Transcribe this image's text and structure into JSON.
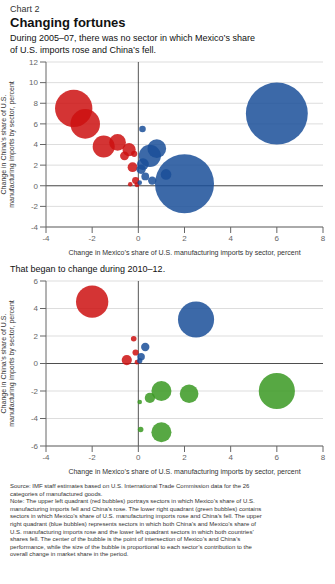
{
  "chart_data": [
    {
      "type": "bubble",
      "title": "Changing fortunes",
      "subtitle": "During 2005–07, there was no sector in which Mexico’s share\nof U.S. imports rose and China’s fell.",
      "annotations": [
        "Chart 2"
      ],
      "xlabel": "Change in Mexico’s share of U.S. manufacturing imports by sector, percent",
      "ylabel": "Change in China’s share of U.S.\nmanufacturing imports by sector, percent",
      "xlim": [
        -4,
        8
      ],
      "ylim": [
        -4,
        12
      ],
      "xticks": [
        -4,
        -2,
        0,
        2,
        4,
        6,
        8
      ],
      "yticks": [
        -4,
        -2,
        0,
        2,
        4,
        6,
        8,
        10,
        12
      ],
      "grid": true,
      "series": [
        {
          "color": "#cc1111",
          "points": [
            {
              "x": -2.8,
              "y": 7.5,
              "size": 800
            },
            {
              "x": -2.3,
              "y": 6.0,
              "size": 500
            },
            {
              "x": -1.5,
              "y": 3.8,
              "size": 280
            },
            {
              "x": -0.9,
              "y": 4.2,
              "size": 160
            },
            {
              "x": -0.4,
              "y": 3.5,
              "size": 100
            },
            {
              "x": -0.25,
              "y": 1.8,
              "size": 55
            },
            {
              "x": -0.12,
              "y": 0.5,
              "size": 28
            },
            {
              "x": -0.06,
              "y": 0.1,
              "size": 14
            },
            {
              "x": -0.35,
              "y": 0.15,
              "size": 12
            },
            {
              "x": -0.6,
              "y": 2.9,
              "size": 45
            },
            {
              "x": -0.18,
              "y": 3.1,
              "size": 22
            }
          ]
        },
        {
          "color": "#1a4f99",
          "points": [
            {
              "x": 2.0,
              "y": 0.2,
              "size": 2000
            },
            {
              "x": 6.0,
              "y": 7.0,
              "size": 2200
            },
            {
              "x": 0.5,
              "y": 2.9,
              "size": 280
            },
            {
              "x": 0.8,
              "y": 3.6,
              "size": 200
            },
            {
              "x": 0.2,
              "y": 2.1,
              "size": 80
            },
            {
              "x": 0.12,
              "y": 1.6,
              "size": 50
            },
            {
              "x": 0.3,
              "y": 0.9,
              "size": 35
            },
            {
              "x": 0.18,
              "y": 5.5,
              "size": 25
            },
            {
              "x": 0.06,
              "y": 0.3,
              "size": 12
            },
            {
              "x": 1.2,
              "y": 1.1,
              "size": 65
            },
            {
              "x": 0.6,
              "y": 0.5,
              "size": 40
            }
          ]
        }
      ]
    },
    {
      "type": "bubble",
      "subtitle": "That began to change during 2010–12.",
      "annotations": [
        "Source: IMF staff estimates based on U.S. International Trade Commission data for the 26\ncategories of manufactured goods.\n   Note: The upper left quadrant (red bubbles) portrays sectors in which Mexico’s share of U.S.\nmanufacturing imports fell and China’s rose. The lower right quadrant (green bubbles) contains\nsectors in which Mexico’s share of U.S. manufacturing imports rose and China’s fell. The upper\nright quadrant (blue bubbles) represents sectors in which both China’s and Mexico’s share of\nU.S. manufacturing imports rose and the lower left quadrant sectors in which both countries’\nshares fell. The center of the bubble is the point of intersection of Mexico’s and China’s\nperformance, while the size of the bubble is proportional to each sector’s contribution to the\noverall change in market share in the period."
      ],
      "xlabel": "Change in Mexico’s share of U.S. manufacturing imports by sector, percent",
      "ylabel": "Change in China’s share of U.S.\nmanufacturing imports by sector, percent",
      "xlim": [
        -4,
        8
      ],
      "ylim": [
        -6,
        6
      ],
      "xticks": [
        -4,
        -2,
        0,
        2,
        4,
        6,
        8
      ],
      "yticks": [
        -6,
        -4,
        -2,
        0,
        2,
        4,
        6
      ],
      "grid": true,
      "series": [
        {
          "color": "#cc1111",
          "points": [
            {
              "x": -2.0,
              "y": 4.5,
              "size": 600
            },
            {
              "x": -0.5,
              "y": 0.25,
              "size": 60
            },
            {
              "x": -0.12,
              "y": 0.8,
              "size": 22
            },
            {
              "x": -0.06,
              "y": 0.1,
              "size": 12
            },
            {
              "x": -0.2,
              "y": 1.8,
              "size": 18
            }
          ]
        },
        {
          "color": "#1a4f99",
          "points": [
            {
              "x": 2.5,
              "y": 3.2,
              "size": 750
            },
            {
              "x": 0.12,
              "y": 0.5,
              "size": 32
            },
            {
              "x": 0.3,
              "y": 1.2,
              "size": 40
            },
            {
              "x": 0.06,
              "y": 0.2,
              "size": 16
            }
          ]
        },
        {
          "color": "#3a9922",
          "points": [
            {
              "x": 1.0,
              "y": -2.0,
              "size": 230
            },
            {
              "x": 2.2,
              "y": -2.2,
              "size": 200
            },
            {
              "x": 6.0,
              "y": -2.0,
              "size": 750
            },
            {
              "x": 1.0,
              "y": -5.0,
              "size": 230
            },
            {
              "x": 0.5,
              "y": -2.5,
              "size": 60
            },
            {
              "x": 0.1,
              "y": -4.8,
              "size": 18
            },
            {
              "x": 0.06,
              "y": -2.8,
              "size": 12
            }
          ]
        }
      ]
    }
  ]
}
